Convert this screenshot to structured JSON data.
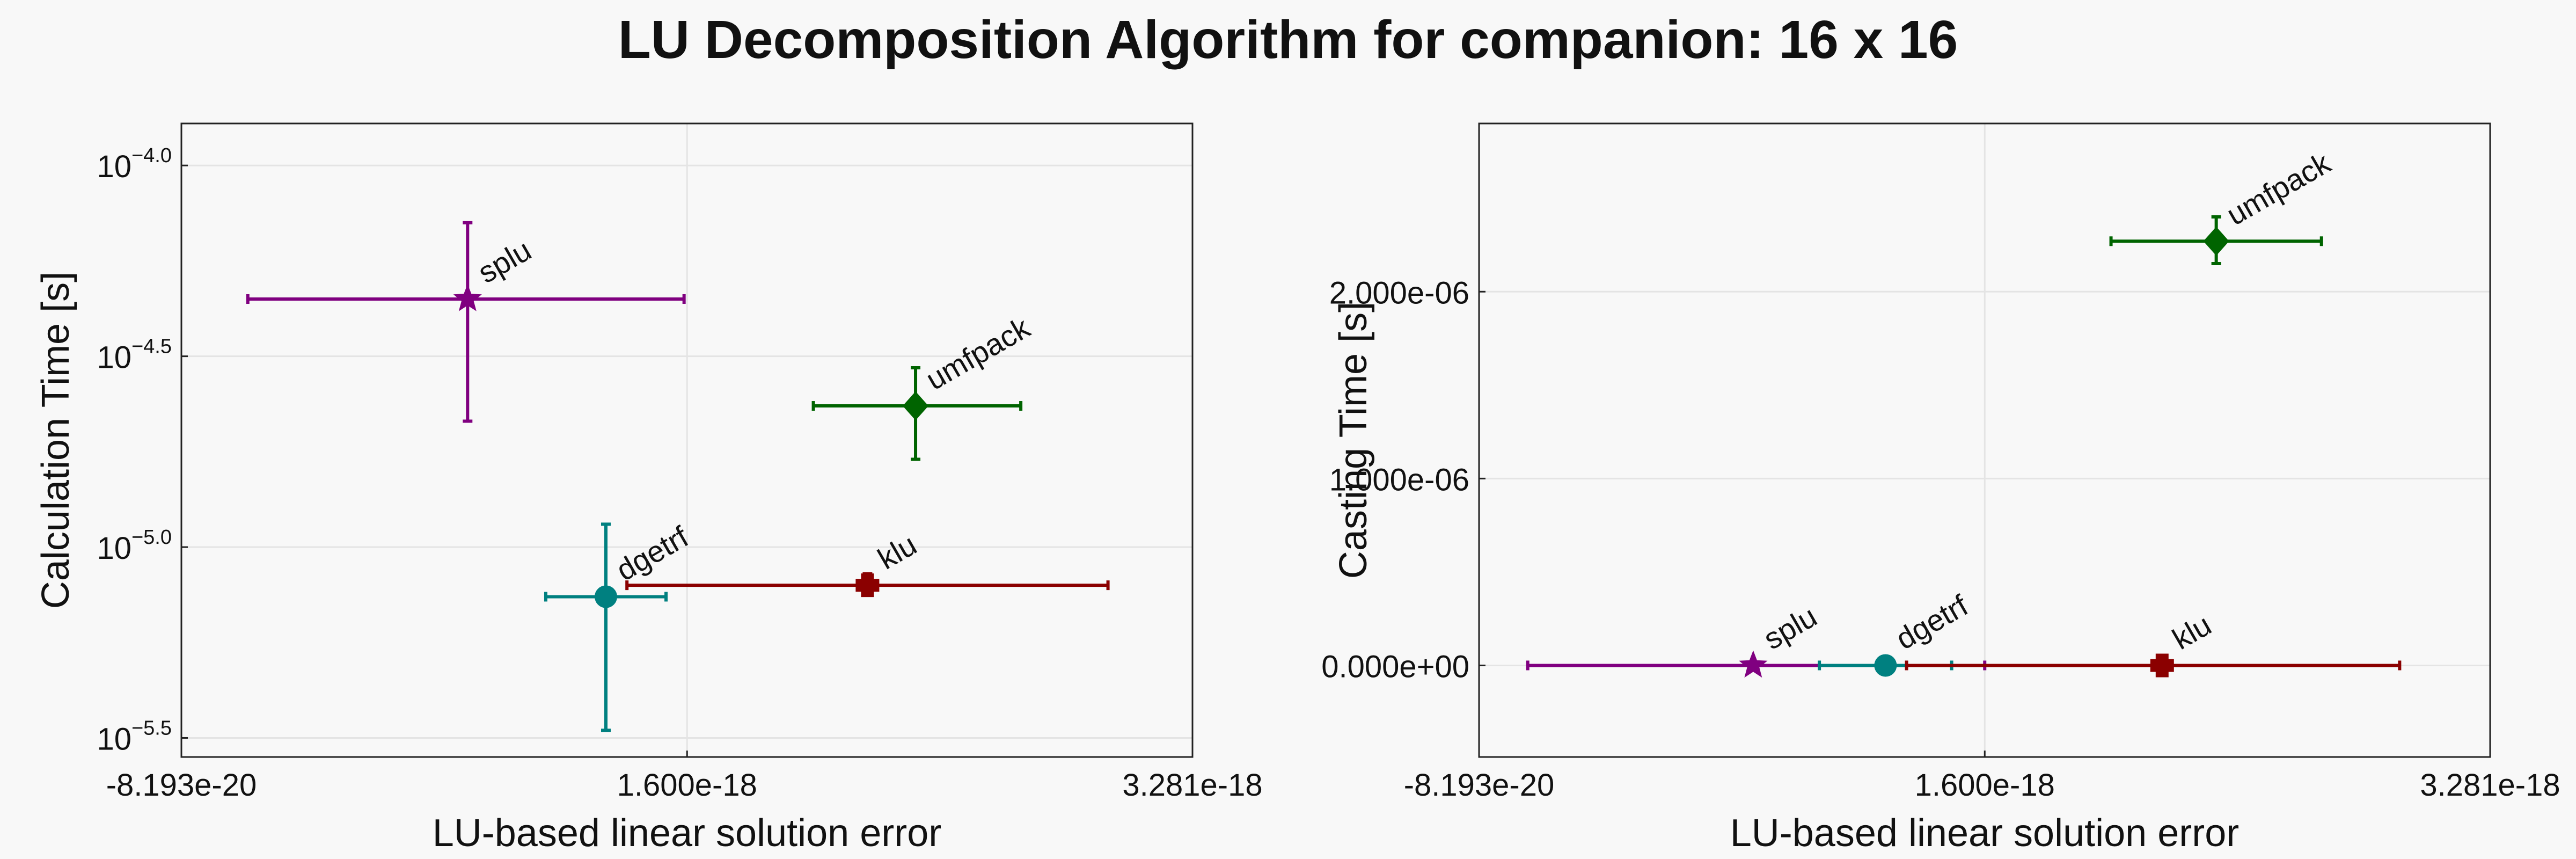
{
  "figure": {
    "title": "LU Decomposition Algorithm for companion: 16 x 16"
  },
  "chart_data": [
    {
      "type": "scatter",
      "xlabel": "LU-based linear solution error",
      "ylabel": "Calculation Time [s]",
      "yscale": "log",
      "xlim": [
        -8.193e-20,
        3.281e-18
      ],
      "ylim_log10": [
        -5.55,
        -3.89
      ],
      "x_ticks": [
        {
          "value": -8.193e-20,
          "label": "-8.193e-20"
        },
        {
          "value": 1.6e-18,
          "label": "1.600e-18"
        },
        {
          "value": 3.281e-18,
          "label": "3.281e-18"
        }
      ],
      "y_ticks": [
        {
          "log10": -4.0,
          "base": "10",
          "exp": "−4.0"
        },
        {
          "log10": -4.5,
          "base": "10",
          "exp": "−4.5"
        },
        {
          "log10": -5.0,
          "base": "10",
          "exp": "−5.0"
        },
        {
          "log10": -5.5,
          "base": "10",
          "exp": "−5.5"
        }
      ],
      "grid": true,
      "series": [
        {
          "label": "splu",
          "marker": "star",
          "color": "#800080",
          "x": 8.7e-19,
          "xerr": [
            1.39e-19,
            1.59e-18
          ],
          "y_log10": -4.35,
          "yerr_log10": [
            -4.67,
            -4.15
          ]
        },
        {
          "label": "umfpack",
          "marker": "diamond",
          "color": "#006400",
          "x": 2.36e-18,
          "xerr": [
            2.02e-18,
            2.71e-18
          ],
          "y_log10": -4.63,
          "yerr_log10": [
            -4.77,
            -4.53
          ]
        },
        {
          "label": "dgetrf",
          "marker": "circle",
          "color": "#008080",
          "x": 1.33e-18,
          "xerr": [
            1.13e-18,
            1.53e-18
          ],
          "y_log10": -5.13,
          "yerr_log10": [
            -5.48,
            -4.94
          ]
        },
        {
          "label": "klu",
          "marker": "plus",
          "color": "#8b0000",
          "x": 2.2e-18,
          "xerr": [
            1.4e-18,
            3e-18
          ],
          "y_log10": -5.1,
          "yerr_log10": [
            -5.12,
            -5.07
          ]
        }
      ]
    },
    {
      "type": "scatter",
      "xlabel": "LU-based linear solution error",
      "ylabel": "Casting Time [s]",
      "yscale": "linear",
      "xlim": [
        -8.193e-20,
        3.281e-18
      ],
      "ylim": [
        -4.9e-07,
        2.9e-06
      ],
      "x_ticks": [
        {
          "value": -8.193e-20,
          "label": "-8.193e-20"
        },
        {
          "value": 1.6e-18,
          "label": "1.600e-18"
        },
        {
          "value": 3.281e-18,
          "label": "3.281e-18"
        }
      ],
      "y_ticks": [
        {
          "value": 0,
          "label": "0.000e+00"
        },
        {
          "value": 1e-06,
          "label": "1.000e-06"
        },
        {
          "value": 2e-06,
          "label": "2.000e-06"
        }
      ],
      "grid": true,
      "series": [
        {
          "label": "splu",
          "marker": "star",
          "color": "#800080",
          "x": 8.3e-19,
          "xerr": [
            8e-20,
            1.6e-18
          ],
          "y": 0,
          "yerr": [
            0,
            0
          ]
        },
        {
          "label": "dgetrf",
          "marker": "circle",
          "color": "#008080",
          "x": 1.27e-18,
          "xerr": [
            1.05e-18,
            1.49e-18
          ],
          "y": 0,
          "yerr": [
            0,
            0
          ]
        },
        {
          "label": "klu",
          "marker": "plus",
          "color": "#8b0000",
          "x": 2.19e-18,
          "xerr": [
            1.34e-18,
            2.98e-18
          ],
          "y": 0,
          "yerr": [
            0,
            0
          ]
        },
        {
          "label": "umfpack",
          "marker": "diamond",
          "color": "#006400",
          "x": 2.37e-18,
          "xerr": [
            2.02e-18,
            2.72e-18
          ],
          "y": 2.27e-06,
          "yerr": [
            2.15e-06,
            2.4e-06
          ]
        }
      ]
    }
  ]
}
